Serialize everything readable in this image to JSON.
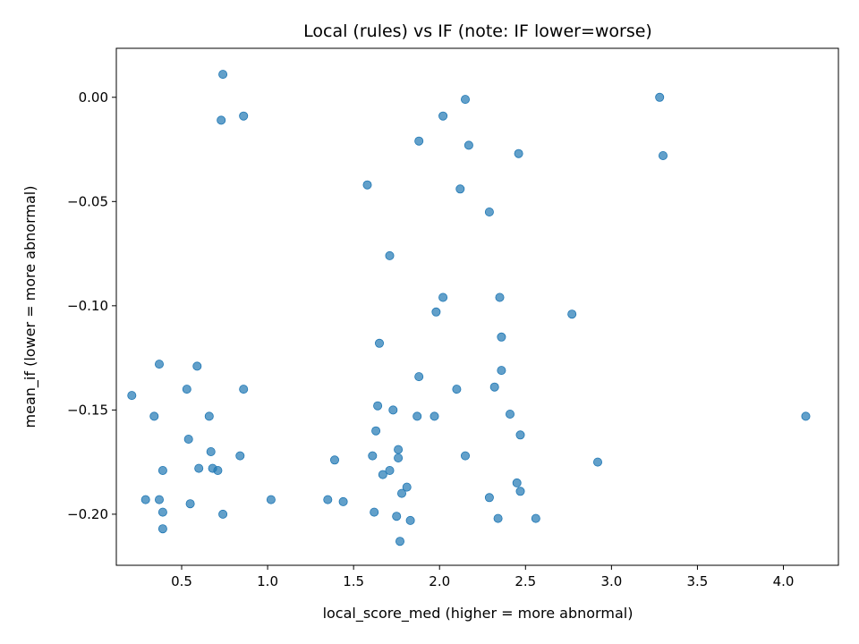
{
  "chart_data": {
    "type": "scatter",
    "title": "Local (rules) vs IF (note: IF lower=worse)",
    "xlabel": "local_score_med (higher = more abnormal)",
    "ylabel": "mean_if (lower = more abnormal)",
    "xlim": [
      0.12,
      4.32
    ],
    "ylim": [
      -0.2245,
      0.0235
    ],
    "x_ticks": [
      0.5,
      1.0,
      1.5,
      2.0,
      2.5,
      3.0,
      3.5,
      4.0
    ],
    "x_tick_labels": [
      "0.5",
      "1.0",
      "1.5",
      "2.0",
      "2.5",
      "3.0",
      "3.5",
      "4.0"
    ],
    "y_ticks": [
      0.0,
      -0.05,
      -0.1,
      -0.15,
      -0.2
    ],
    "y_tick_labels": [
      "0.00",
      "−0.05",
      "−0.10",
      "−0.15",
      "−0.20"
    ],
    "grid": false,
    "marker_color": "#1f77b4",
    "marker_opacity": 0.7,
    "points": [
      [
        0.74,
        0.011
      ],
      [
        0.73,
        -0.011
      ],
      [
        0.86,
        -0.009
      ],
      [
        2.15,
        -0.001
      ],
      [
        2.02,
        -0.009
      ],
      [
        1.88,
        -0.021
      ],
      [
        2.17,
        -0.023
      ],
      [
        2.46,
        -0.027
      ],
      [
        3.28,
        0.0
      ],
      [
        3.3,
        -0.028
      ],
      [
        1.58,
        -0.042
      ],
      [
        2.12,
        -0.044
      ],
      [
        2.29,
        -0.055
      ],
      [
        1.71,
        -0.076
      ],
      [
        2.02,
        -0.096
      ],
      [
        1.98,
        -0.103
      ],
      [
        2.35,
        -0.096
      ],
      [
        2.36,
        -0.115
      ],
      [
        2.77,
        -0.104
      ],
      [
        1.65,
        -0.118
      ],
      [
        0.37,
        -0.128
      ],
      [
        0.59,
        -0.129
      ],
      [
        1.88,
        -0.134
      ],
      [
        2.36,
        -0.131
      ],
      [
        2.32,
        -0.139
      ],
      [
        2.1,
        -0.14
      ],
      [
        0.21,
        -0.143
      ],
      [
        0.53,
        -0.14
      ],
      [
        0.86,
        -0.14
      ],
      [
        1.64,
        -0.148
      ],
      [
        1.73,
        -0.15
      ],
      [
        1.87,
        -0.153
      ],
      [
        1.97,
        -0.153
      ],
      [
        2.41,
        -0.152
      ],
      [
        0.34,
        -0.153
      ],
      [
        0.66,
        -0.153
      ],
      [
        4.13,
        -0.153
      ],
      [
        1.63,
        -0.16
      ],
      [
        2.47,
        -0.162
      ],
      [
        0.54,
        -0.164
      ],
      [
        0.67,
        -0.17
      ],
      [
        0.84,
        -0.172
      ],
      [
        1.61,
        -0.172
      ],
      [
        1.76,
        -0.169
      ],
      [
        1.76,
        -0.173
      ],
      [
        2.15,
        -0.172
      ],
      [
        1.39,
        -0.174
      ],
      [
        2.92,
        -0.175
      ],
      [
        0.6,
        -0.178
      ],
      [
        0.68,
        -0.178
      ],
      [
        0.71,
        -0.179
      ],
      [
        0.39,
        -0.179
      ],
      [
        1.71,
        -0.179
      ],
      [
        1.67,
        -0.181
      ],
      [
        2.45,
        -0.185
      ],
      [
        1.81,
        -0.187
      ],
      [
        2.47,
        -0.189
      ],
      [
        1.78,
        -0.19
      ],
      [
        2.29,
        -0.192
      ],
      [
        0.29,
        -0.193
      ],
      [
        0.37,
        -0.193
      ],
      [
        1.02,
        -0.193
      ],
      [
        1.35,
        -0.193
      ],
      [
        1.44,
        -0.194
      ],
      [
        0.55,
        -0.195
      ],
      [
        0.39,
        -0.199
      ],
      [
        0.74,
        -0.2
      ],
      [
        1.62,
        -0.199
      ],
      [
        1.75,
        -0.201
      ],
      [
        1.83,
        -0.203
      ],
      [
        2.34,
        -0.202
      ],
      [
        2.56,
        -0.202
      ],
      [
        0.39,
        -0.207
      ],
      [
        1.77,
        -0.213
      ]
    ]
  }
}
